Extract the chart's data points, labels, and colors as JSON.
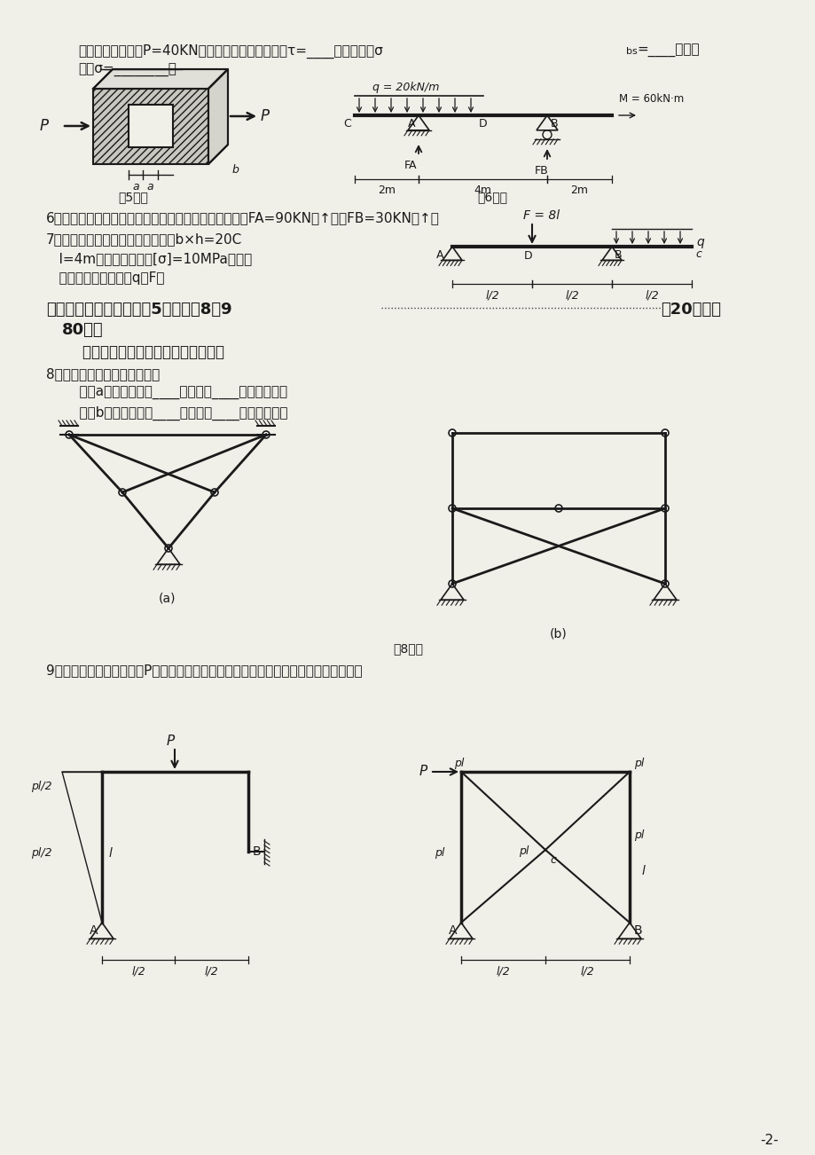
{
  "bg_color": "#f0efe8",
  "text_color": "#1a1a1a",
  "line_color": "#1a1a1a",
  "page_number": "-2-",
  "line1": "受到一对轴向拉力P=40KN作用，该连接件的剪应力τ=____，挤压应力σ",
  "line1b": "bs",
  "line1c": "=____，拉伸",
  "line2": "应力σ=________。",
  "fig5_label": "第5题图",
  "fig6_label": "第6题图",
  "q6_text": "6．绘制图示外伸梁的剪力图和弯矩图，已知：支座反力FA=90KN（↑），FB=30KN（↑）",
  "q7_line1": "7．图示为矩形截面木梁，截面尺寸b×h=20C",
  "q7_line2": "   l=4m，材料许用应力[σ]=10MPa，试根",
  "q7_line3": "   度确定梁的许用荷载q、F。",
  "sec3_text": "三、结构力学（本大题共5小题，第8、9",
  "sec3_text2": "各20分，共",
  "sec3_text3": "80分）",
  "sec3_note": "    请将答案写在答题纸相应的位置上。",
  "q8_text": "8．通过几何组成分析，可知：",
  "q8_a": "    图（a）所示结构为____体系，有____个多余约束。",
  "q8_b": "    图（b）所示结构为____体系，有____个多余约束。",
  "fig8_label": "第8题图",
  "q9_text": "9．图示各静定刚架在荷载P作用下的弯矩图，请检查是否正确，若有错误请加以改正。"
}
